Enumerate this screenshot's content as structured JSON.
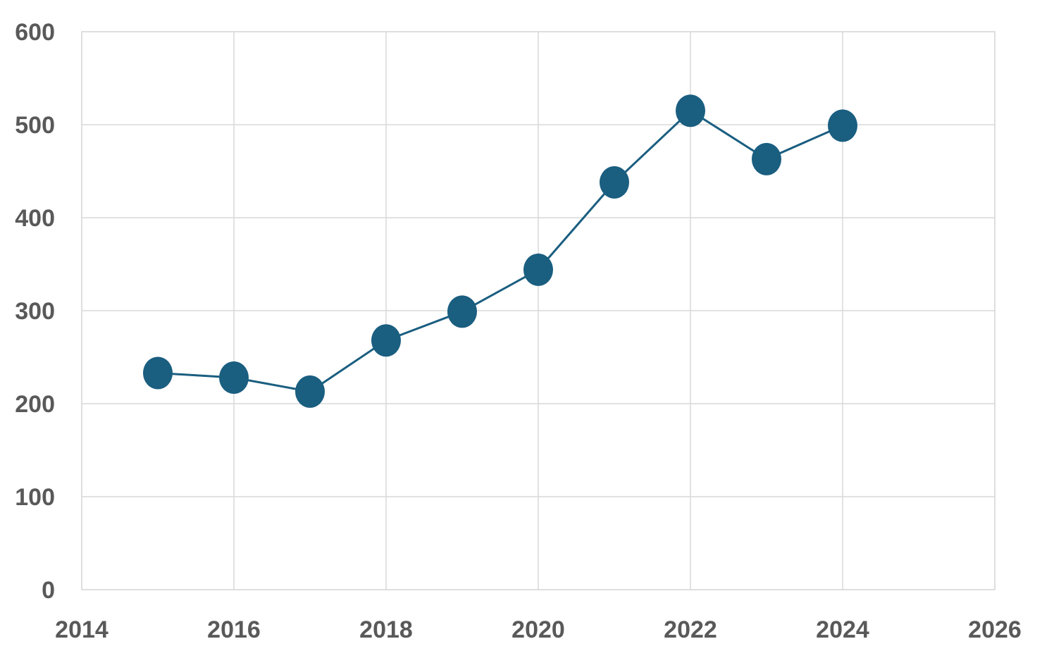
{
  "chart_data": {
    "type": "scatter",
    "mode": "lines+markers",
    "title": "",
    "xlabel": "",
    "ylabel": "",
    "xlim": [
      2014,
      2026
    ],
    "ylim": [
      0,
      600
    ],
    "x_ticks": [
      2014,
      2016,
      2018,
      2020,
      2022,
      2024,
      2026
    ],
    "y_ticks": [
      0,
      100,
      200,
      300,
      400,
      500,
      600
    ],
    "x_tick_labels": [
      "2014",
      "2016",
      "2018",
      "2020",
      "2022",
      "2024",
      "2026"
    ],
    "y_tick_labels": [
      "0",
      "100",
      "200",
      "300",
      "400",
      "500",
      "600"
    ],
    "grid": true,
    "legend": "none",
    "series": [
      {
        "color": "#1a5e80",
        "x": [
          2015,
          2016,
          2017,
          2018,
          2019,
          2020,
          2021,
          2022,
          2023,
          2024
        ],
        "y": [
          233,
          228,
          213,
          268,
          299,
          344,
          438,
          515,
          463,
          499
        ]
      }
    ]
  }
}
